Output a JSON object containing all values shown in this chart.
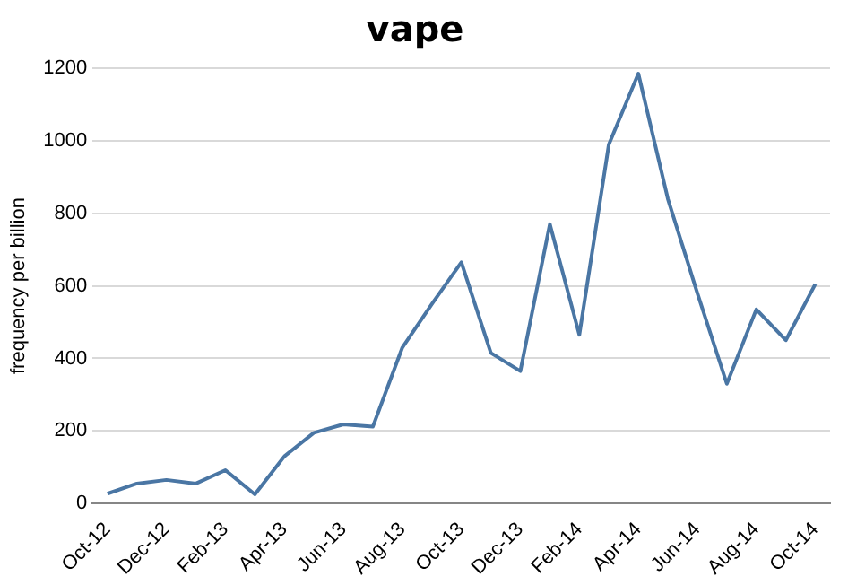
{
  "chart_data": {
    "type": "line",
    "title": "vape",
    "ylabel": "frequency per billion",
    "categories": [
      "Oct-12",
      null,
      "Dec-12",
      null,
      "Feb-13",
      null,
      "Apr-13",
      null,
      "Jun-13",
      null,
      "Aug-13",
      null,
      "Oct-13",
      null,
      "Dec-13",
      null,
      "Feb-14",
      null,
      "Apr-14",
      null,
      "Jun-14",
      null,
      "Aug-14",
      null,
      "Oct-14"
    ],
    "series": [
      {
        "color": "#4a76a4",
        "values": [
          27,
          55,
          65,
          55,
          92,
          25,
          130,
          195,
          218,
          212,
          430,
          550,
          665,
          415,
          365,
          770,
          465,
          990,
          1185,
          840,
          580,
          330,
          535,
          450,
          605
        ]
      }
    ],
    "ylim": [
      0,
      1200
    ],
    "yticks": [
      0,
      200,
      400,
      600,
      800,
      1000,
      1200
    ],
    "grid": "y",
    "legend": false,
    "marker": "none"
  }
}
